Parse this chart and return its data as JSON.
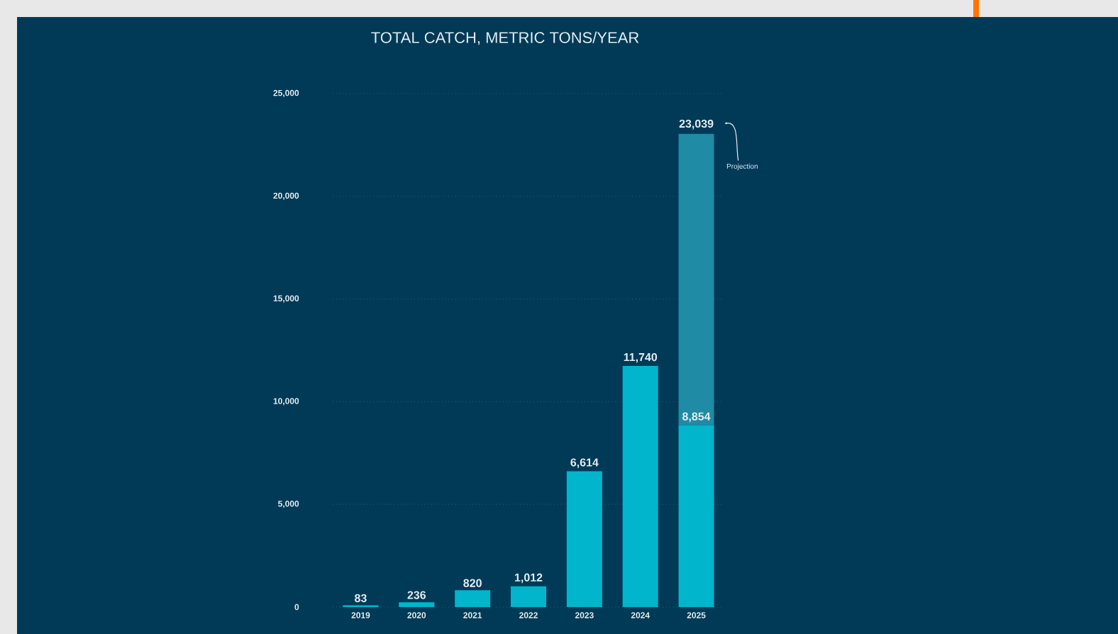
{
  "chart_data": {
    "type": "bar",
    "title": "TOTAL CATCH, METRIC TONS/YEAR",
    "categories": [
      "2019",
      "2020",
      "2021",
      "2022",
      "2023",
      "2024",
      "2025"
    ],
    "stacked": true,
    "series": [
      {
        "color": "#00b5cc",
        "values": [
          83,
          236,
          820,
          1012,
          6614,
          11740,
          8854
        ],
        "value_labels": [
          "83",
          "236",
          "820",
          "1,012",
          "6,614",
          "11,740",
          "8,854"
        ]
      },
      {
        "color": "#1f8ba5",
        "values": [
          null,
          null,
          null,
          null,
          null,
          null,
          14185
        ]
      }
    ],
    "totals": [
      null,
      null,
      null,
      null,
      null,
      null,
      "23,039"
    ],
    "annotations": [
      "Projection"
    ],
    "ylim": [
      0,
      25000
    ],
    "yticks": [
      {
        "value": 0,
        "label": "0"
      },
      {
        "value": 5000,
        "label": "5,000"
      },
      {
        "value": 10000,
        "label": "10,000"
      },
      {
        "value": 15000,
        "label": "15,000"
      },
      {
        "value": 20000,
        "label": "20,000"
      },
      {
        "value": 25000,
        "label": "25,000"
      }
    ],
    "grid": "y"
  }
}
